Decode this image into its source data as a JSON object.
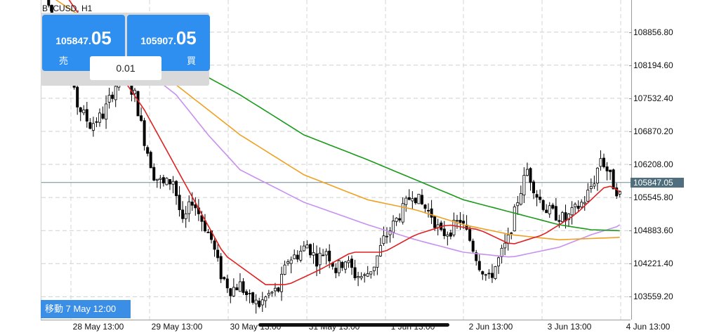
{
  "symbol": "BTCUSD, H1",
  "trade_panel": {
    "sell": {
      "price_small": "105847.",
      "price_big": "05",
      "label": "売"
    },
    "buy": {
      "price_small": "105907.",
      "price_big": "05",
      "label": "買"
    },
    "lot": "0.01"
  },
  "goto_label": "移動 7 May 12:00",
  "current_price": "105847.05",
  "colors": {
    "ema_red": "#e02020",
    "ema_orange": "#f0a020",
    "ema_green": "#1a9a1a",
    "ema_violet": "#c890f0",
    "accent": "#2f8ff0"
  },
  "chart_data": {
    "type": "candlestick",
    "timeframe": "H1",
    "ylim": [
      103100,
      109500
    ],
    "y_ticks": [
      "108856.80",
      "108194.60",
      "107532.40",
      "106870.20",
      "106208.00",
      "105545.80",
      "104883.60",
      "104221.40",
      "103559.20"
    ],
    "x_ticks": [
      "28 May 13:00",
      "29 May 13:00",
      "30 May 13:00",
      "31 May 13:00",
      "1 Jun 13:00",
      "2 Jun 13:00",
      "3 Jun 13:00",
      "4 Jun 13:00"
    ],
    "grid": true,
    "close_path": [
      [
        0,
        109600
      ],
      [
        6,
        108300
      ],
      [
        10,
        107400
      ],
      [
        14,
        107000
      ],
      [
        18,
        107200
      ],
      [
        22,
        107800
      ],
      [
        24,
        108000
      ],
      [
        28,
        107600
      ],
      [
        31,
        106700
      ],
      [
        34,
        106000
      ],
      [
        37,
        105800
      ],
      [
        40,
        105900
      ],
      [
        43,
        105000
      ],
      [
        46,
        105500
      ],
      [
        49,
        105100
      ],
      [
        52,
        104700
      ],
      [
        55,
        104000
      ],
      [
        58,
        103700
      ],
      [
        61,
        103800
      ],
      [
        64,
        103500
      ],
      [
        67,
        103400
      ],
      [
        70,
        103600
      ],
      [
        73,
        103700
      ],
      [
        76,
        104300
      ],
      [
        79,
        104400
      ],
      [
        82,
        104600
      ],
      [
        85,
        104300
      ],
      [
        88,
        104500
      ],
      [
        91,
        104100
      ],
      [
        94,
        104300
      ],
      [
        97,
        104000
      ],
      [
        100,
        103950
      ],
      [
        103,
        104200
      ],
      [
        106,
        104700
      ],
      [
        109,
        105000
      ],
      [
        112,
        105300
      ],
      [
        115,
        105650
      ],
      [
        118,
        105400
      ],
      [
        121,
        105200
      ],
      [
        124,
        104800
      ],
      [
        127,
        104900
      ],
      [
        130,
        105100
      ],
      [
        133,
        104700
      ],
      [
        136,
        104200
      ],
      [
        139,
        103900
      ],
      [
        142,
        104300
      ],
      [
        145,
        104700
      ],
      [
        148,
        105500
      ],
      [
        151,
        106100
      ],
      [
        154,
        105600
      ],
      [
        157,
        105300
      ],
      [
        160,
        105200
      ],
      [
        163,
        105100
      ],
      [
        166,
        105300
      ],
      [
        169,
        105500
      ],
      [
        172,
        105900
      ],
      [
        174,
        106350
      ],
      [
        176,
        106100
      ],
      [
        178,
        105800
      ],
      [
        180,
        105600
      ]
    ],
    "ema_red": [
      [
        0,
        110100
      ],
      [
        30,
        107300
      ],
      [
        55,
        104400
      ],
      [
        68,
        103800
      ],
      [
        75,
        103800
      ],
      [
        85,
        104100
      ],
      [
        95,
        104450
      ],
      [
        105,
        104450
      ],
      [
        115,
        104800
      ],
      [
        125,
        105000
      ],
      [
        135,
        104900
      ],
      [
        145,
        104600
      ],
      [
        155,
        104800
      ],
      [
        165,
        105200
      ],
      [
        175,
        105800
      ],
      [
        180,
        105650
      ]
    ],
    "ema_orange": [
      [
        0,
        109600
      ],
      [
        25,
        108550
      ],
      [
        40,
        107800
      ],
      [
        60,
        106800
      ],
      [
        80,
        106000
      ],
      [
        100,
        105500
      ],
      [
        115,
        105300
      ],
      [
        130,
        105000
      ],
      [
        145,
        104800
      ],
      [
        160,
        104700
      ],
      [
        180,
        104750
      ]
    ],
    "ema_green": [
      [
        0,
        109200
      ],
      [
        25,
        108600
      ],
      [
        40,
        108300
      ],
      [
        60,
        107600
      ],
      [
        80,
        106800
      ],
      [
        100,
        106300
      ],
      [
        115,
        105900
      ],
      [
        130,
        105500
      ],
      [
        145,
        105250
      ],
      [
        160,
        105000
      ],
      [
        170,
        104900
      ],
      [
        180,
        104880
      ]
    ],
    "ema_violet": [
      [
        0,
        109100
      ],
      [
        25,
        108350
      ],
      [
        40,
        107600
      ],
      [
        50,
        106800
      ],
      [
        60,
        106100
      ],
      [
        80,
        105450
      ],
      [
        100,
        105000
      ],
      [
        115,
        104700
      ],
      [
        130,
        104450
      ],
      [
        145,
        104350
      ],
      [
        160,
        104550
      ],
      [
        170,
        104800
      ],
      [
        180,
        105000
      ]
    ]
  }
}
